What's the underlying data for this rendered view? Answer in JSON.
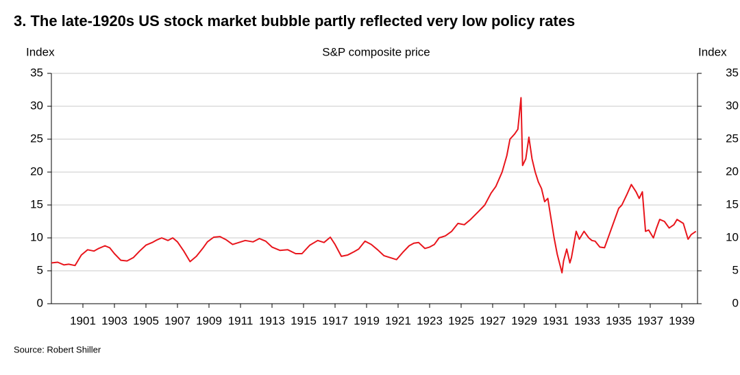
{
  "chart_data": {
    "type": "line",
    "title": "3.  The late-1920s US stock market bubble partly reflected very low policy rates",
    "subtitle": "S&P composite price",
    "y_label": "Index",
    "y2_label": "Index",
    "source": "Source: Robert Shiller",
    "xlim": [
      1899,
      1940
    ],
    "xticks": [
      1901,
      1903,
      1905,
      1907,
      1909,
      1911,
      1913,
      1915,
      1917,
      1919,
      1921,
      1923,
      1925,
      1927,
      1929,
      1931,
      1933,
      1935,
      1937,
      1939
    ],
    "ylim": [
      0,
      35
    ],
    "yticks": [
      0,
      5,
      10,
      15,
      20,
      25,
      30,
      35
    ],
    "y2lim": [
      0,
      35
    ],
    "y2ticks": [
      0,
      5,
      10,
      15,
      20,
      25,
      30,
      35
    ],
    "grid": true,
    "series": [
      {
        "name": "S&P composite price",
        "color": "#e8141b",
        "x": [
          1899.0,
          1899.4,
          1899.8,
          1900.1,
          1900.5,
          1900.9,
          1901.3,
          1901.7,
          1902.0,
          1902.4,
          1902.7,
          1903.0,
          1903.4,
          1903.8,
          1904.2,
          1904.6,
          1905.0,
          1905.4,
          1905.7,
          1906.0,
          1906.4,
          1906.7,
          1907.0,
          1907.4,
          1907.8,
          1908.2,
          1908.6,
          1908.9,
          1909.3,
          1909.7,
          1910.1,
          1910.5,
          1910.9,
          1911.3,
          1911.8,
          1912.2,
          1912.6,
          1913.0,
          1913.5,
          1914.0,
          1914.5,
          1914.9,
          1915.4,
          1915.9,
          1916.3,
          1916.7,
          1917.0,
          1917.4,
          1917.8,
          1918.2,
          1918.5,
          1918.9,
          1919.3,
          1919.7,
          1920.1,
          1920.5,
          1920.9,
          1921.3,
          1921.7,
          1922.0,
          1922.3,
          1922.7,
          1923.0,
          1923.3,
          1923.6,
          1924.0,
          1924.4,
          1924.8,
          1925.2,
          1925.6,
          1926.1,
          1926.5,
          1926.9,
          1927.2,
          1927.6,
          1927.9,
          1928.1,
          1928.4,
          1928.6,
          1928.8,
          1928.9,
          1929.1,
          1929.3,
          1929.5,
          1929.7,
          1929.9,
          1930.1,
          1930.3,
          1930.5,
          1930.7,
          1930.9,
          1931.1,
          1931.4,
          1931.5,
          1931.7,
          1931.9,
          1932.0,
          1932.3,
          1932.5,
          1932.8,
          1933.1,
          1933.3,
          1933.5,
          1933.8,
          1934.1,
          1934.4,
          1934.7,
          1935.0,
          1935.2,
          1935.5,
          1935.8,
          1936.1,
          1936.3,
          1936.5,
          1936.7,
          1936.9,
          1937.2,
          1937.4,
          1937.6,
          1937.9,
          1938.2,
          1938.5,
          1938.7,
          1938.9,
          1939.1,
          1939.4,
          1939.6,
          1939.9
        ],
        "values": [
          6.2,
          6.3,
          5.9,
          6.0,
          5.8,
          7.4,
          8.2,
          8.0,
          8.4,
          8.8,
          8.5,
          7.6,
          6.6,
          6.5,
          7.0,
          8.0,
          8.9,
          9.3,
          9.7,
          10.0,
          9.6,
          10.0,
          9.4,
          8.0,
          6.4,
          7.2,
          8.4,
          9.4,
          10.1,
          10.2,
          9.7,
          9.0,
          9.3,
          9.6,
          9.4,
          9.9,
          9.5,
          8.6,
          8.1,
          8.2,
          7.6,
          7.6,
          8.9,
          9.6,
          9.3,
          10.1,
          9.0,
          7.2,
          7.4,
          7.9,
          8.3,
          9.5,
          9.0,
          8.2,
          7.3,
          7.0,
          6.7,
          7.8,
          8.8,
          9.2,
          9.3,
          8.4,
          8.6,
          9.0,
          10.0,
          10.3,
          11.0,
          12.2,
          12.0,
          12.8,
          14.0,
          15.0,
          16.8,
          17.8,
          20.0,
          22.5,
          25.0,
          25.8,
          26.5,
          31.3,
          21.0,
          22.0,
          25.3,
          22.0,
          20.0,
          18.5,
          17.5,
          15.5,
          16.0,
          13.0,
          10.0,
          7.5,
          4.7,
          6.5,
          8.3,
          6.2,
          7.0,
          11.0,
          9.8,
          11.0,
          10.0,
          9.6,
          9.5,
          8.6,
          8.5,
          10.5,
          12.5,
          14.5,
          15.0,
          16.5,
          18.1,
          17.0,
          16.0,
          17.0,
          11.0,
          11.2,
          10.0,
          11.5,
          12.8,
          12.5,
          11.5,
          12.0,
          12.8,
          12.5,
          12.2,
          9.8,
          10.5,
          11.0
        ]
      }
    ]
  }
}
